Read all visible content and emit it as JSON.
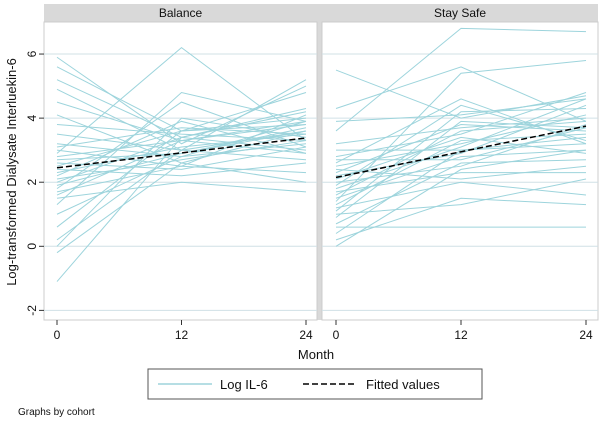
{
  "chart_data": {
    "type": "line",
    "ylabel": "Log-transformed Dialysate Interluekin-6",
    "xlabel": "Month",
    "x_ticks": [
      0,
      12,
      24
    ],
    "y_ticks": [
      6,
      4,
      2,
      0,
      -2
    ],
    "y_tick_labels": [
      "6",
      "4",
      "2",
      "0",
      "-2"
    ],
    "xlim": [
      0,
      24
    ],
    "ylim": [
      -2.3,
      7.0
    ],
    "grid": true,
    "legend_position": "bottom",
    "legend": [
      {
        "name": "Log IL-6",
        "style": "solid",
        "color": "#9dd4dc"
      },
      {
        "name": "Fitted values",
        "style": "dashed",
        "color": "#000000"
      }
    ],
    "note": "Graphs by cohort",
    "colors": {
      "individual": "#9dd4dc",
      "fitted": "#000000",
      "panel_header": "#d9d9d9",
      "grid": "#d0e0e6",
      "background": "#ffffff"
    },
    "panels": [
      {
        "title": "Balance",
        "fitted": {
          "x": [
            0,
            24
          ],
          "y": [
            2.45,
            3.38
          ]
        },
        "individual_series": [
          [
            5.9,
            3.2,
            5.0
          ],
          [
            5.6,
            3.6,
            4.8
          ],
          [
            5.2,
            3.4,
            4.3
          ],
          [
            4.9,
            3.0,
            3.6
          ],
          [
            4.5,
            3.3,
            3.9
          ],
          [
            4.1,
            2.6,
            2.0
          ],
          [
            3.8,
            3.5,
            3.3
          ],
          [
            3.5,
            3.0,
            5.2
          ],
          [
            3.2,
            2.8,
            3.9
          ],
          [
            3.1,
            3.7,
            3.5
          ],
          [
            3.0,
            2.5,
            4.1
          ],
          [
            2.9,
            6.2,
            3.3
          ],
          [
            2.8,
            3.3,
            2.9
          ],
          [
            2.7,
            2.9,
            3.7
          ],
          [
            2.6,
            2.4,
            3.1
          ],
          [
            2.5,
            3.6,
            3.8
          ],
          [
            2.4,
            2.2,
            2.6
          ],
          [
            2.3,
            3.1,
            3.5
          ],
          [
            2.2,
            3.9,
            2.9
          ],
          [
            2.1,
            2.7,
            3.3
          ],
          [
            2.0,
            3.4,
            4.2
          ],
          [
            1.9,
            2.9,
            3.6
          ],
          [
            1.8,
            4.5,
            3.1
          ],
          [
            1.7,
            2.5,
            2.3
          ],
          [
            1.6,
            3.3,
            3.8
          ],
          [
            1.5,
            2.0,
            1.7
          ],
          [
            1.3,
            4.8,
            3.9
          ],
          [
            1.0,
            2.8,
            3.2
          ],
          [
            0.6,
            3.6,
            4.0
          ],
          [
            0.2,
            3.0,
            2.7
          ],
          [
            0.0,
            4.0,
            3.4
          ],
          [
            -0.2,
            2.6,
            3.6
          ],
          [
            -1.1,
            3.4,
            3.0
          ]
        ]
      },
      {
        "title": "Stay Safe",
        "fitted": {
          "x": [
            0,
            24
          ],
          "y": [
            2.15,
            3.75
          ]
        },
        "individual_series": [
          [
            5.5,
            4.0,
            4.7
          ],
          [
            4.3,
            5.6,
            3.9
          ],
          [
            3.9,
            4.1,
            4.6
          ],
          [
            3.6,
            6.8,
            6.7
          ],
          [
            3.2,
            3.7,
            4.0
          ],
          [
            3.0,
            3.0,
            3.4
          ],
          [
            2.8,
            3.5,
            4.8
          ],
          [
            2.7,
            2.7,
            3.7
          ],
          [
            2.6,
            4.6,
            3.2
          ],
          [
            2.5,
            3.2,
            4.1
          ],
          [
            2.4,
            2.1,
            2.5
          ],
          [
            2.3,
            3.8,
            3.6
          ],
          [
            2.2,
            2.9,
            4.4
          ],
          [
            2.1,
            3.4,
            2.9
          ],
          [
            2.0,
            2.5,
            3.8
          ],
          [
            1.9,
            4.4,
            3.3
          ],
          [
            1.8,
            3.1,
            4.6
          ],
          [
            1.7,
            2.3,
            2.3
          ],
          [
            1.6,
            3.6,
            3.9
          ],
          [
            1.5,
            2.8,
            3.0
          ],
          [
            1.4,
            5.4,
            5.8
          ],
          [
            1.3,
            3.3,
            3.5
          ],
          [
            1.2,
            2.0,
            1.6
          ],
          [
            1.1,
            4.2,
            4.3
          ],
          [
            1.0,
            1.3,
            2.1
          ],
          [
            0.9,
            3.9,
            3.7
          ],
          [
            0.7,
            2.6,
            2.7
          ],
          [
            0.6,
            0.6,
            0.6
          ],
          [
            0.4,
            3.0,
            3.2
          ],
          [
            0.2,
            1.5,
            1.3
          ],
          [
            0.0,
            2.4,
            3.0
          ]
        ]
      }
    ]
  }
}
